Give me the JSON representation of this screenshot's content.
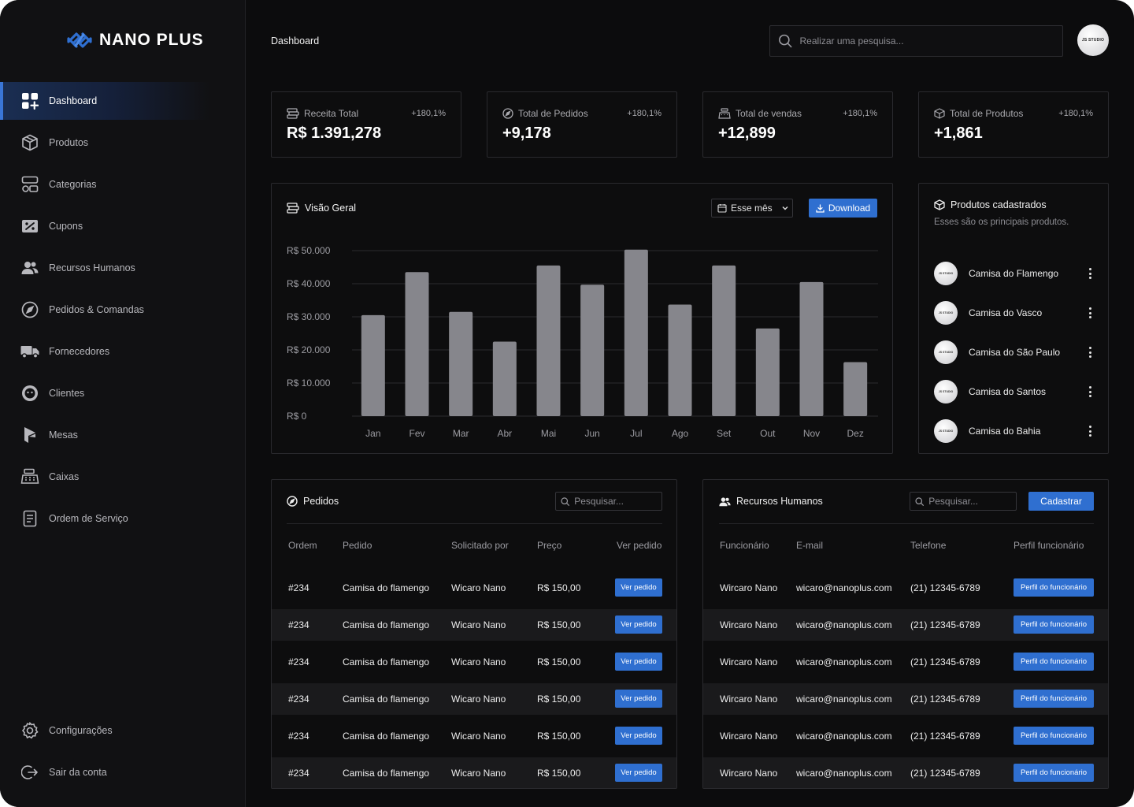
{
  "brand": {
    "name": "NANO PLUS",
    "accent": "#2f6fd0"
  },
  "sidebar": {
    "items": [
      {
        "label": "Dashboard",
        "icon": "dashboard-grid-icon",
        "active": true
      },
      {
        "label": "Produtos",
        "icon": "box-icon"
      },
      {
        "label": "Categorias",
        "icon": "categories-icon"
      },
      {
        "label": "Cupons",
        "icon": "coupon-icon"
      },
      {
        "label": "Recursos Humanos",
        "icon": "users-icon"
      },
      {
        "label": "Pedidos & Comandas",
        "icon": "compass-icon"
      },
      {
        "label": "Fornecedores",
        "icon": "truck-icon"
      },
      {
        "label": "Clientes",
        "icon": "face-icon"
      },
      {
        "label": "Mesas",
        "icon": "table-icon"
      },
      {
        "label": "Caixas",
        "icon": "cash-register-icon"
      },
      {
        "label": "Ordem de Serviço",
        "icon": "document-icon"
      }
    ],
    "bottom": [
      {
        "label": "Configurações",
        "icon": "gear-icon"
      },
      {
        "label": "Sair da conta",
        "icon": "logout-icon"
      }
    ]
  },
  "header": {
    "breadcrumb": "Dashboard",
    "search_placeholder": "Realizar uma pesquisa...",
    "avatar_text": "JS STUDIO"
  },
  "stats": [
    {
      "title": "Receita Total",
      "change": "+180,1%",
      "value": "R$ 1.391,278",
      "icon": "money-icon"
    },
    {
      "title": "Total de Pedidos",
      "change": "+180,1%",
      "value": "+9,178",
      "icon": "compass-icon"
    },
    {
      "title": "Total de vendas",
      "change": "+180,1%",
      "value": "+12,899",
      "icon": "register-icon"
    },
    {
      "title": "Total de Produtos",
      "change": "+180,1%",
      "value": "+1,861",
      "icon": "box-icon"
    }
  ],
  "overview": {
    "title": "Visão Geral",
    "period_label": "Esse mês",
    "download_label": "Download"
  },
  "chart_data": {
    "type": "bar",
    "categories": [
      "Jan",
      "Fev",
      "Mar",
      "Abr",
      "Mai",
      "Jun",
      "Jul",
      "Ago",
      "Set",
      "Out",
      "Nov",
      "Dez"
    ],
    "values": [
      30500,
      43500,
      31500,
      22500,
      45500,
      39700,
      50300,
      33700,
      45500,
      26500,
      40500,
      16300
    ],
    "y_tick_labels": [
      "R$ 0",
      "R$ 10.000",
      "R$ 20.000",
      "R$ 30.000",
      "R$ 40.000",
      "R$ 50.000"
    ],
    "y_ticks": [
      0,
      10000,
      20000,
      30000,
      40000,
      50000
    ],
    "ylim": [
      0,
      50000
    ],
    "grid": true,
    "bar_color": "#86868c"
  },
  "products": {
    "title": "Produtos cadastrados",
    "subtitle": "Esses são os principais produtos.",
    "avatar_text": "JS STUDIO",
    "items": [
      "Camisa do Flamengo",
      "Camisa do Vasco",
      "Camisa do São Paulo",
      "Camisa do Santos",
      "Camisa do Bahia"
    ]
  },
  "orders": {
    "title": "Pedidos",
    "search_placeholder": "Pesquisar...",
    "columns": [
      "Ordem",
      "Pedido",
      "Solicitado por",
      "Preço",
      "Ver pedido"
    ],
    "button_label": "Ver pedido",
    "rows": [
      [
        "#234",
        "Camisa do flamengo",
        "Wicaro Nano",
        "R$ 150,00"
      ],
      [
        "#234",
        "Camisa do flamengo",
        "Wicaro Nano",
        "R$ 150,00"
      ],
      [
        "#234",
        "Camisa do flamengo",
        "Wicaro Nano",
        "R$ 150,00"
      ],
      [
        "#234",
        "Camisa do flamengo",
        "Wicaro Nano",
        "R$ 150,00"
      ],
      [
        "#234",
        "Camisa do flamengo",
        "Wicaro Nano",
        "R$ 150,00"
      ],
      [
        "#234",
        "Camisa do flamengo",
        "Wicaro Nano",
        "R$ 150,00"
      ]
    ]
  },
  "hr": {
    "title": "Recursos Humanos",
    "search_placeholder": "Pesquisar...",
    "add_label": "Cadastrar",
    "columns": [
      "Funcionário",
      "E-mail",
      "Telefone",
      "Perfil funcionário"
    ],
    "button_label": "Perfil do funcionário",
    "rows": [
      [
        "Wircaro Nano",
        "wicaro@nanoplus.com",
        "(21) 12345-6789"
      ],
      [
        "Wircaro Nano",
        "wicaro@nanoplus.com",
        "(21) 12345-6789"
      ],
      [
        "Wircaro Nano",
        "wicaro@nanoplus.com",
        "(21) 12345-6789"
      ],
      [
        "Wircaro Nano",
        "wicaro@nanoplus.com",
        "(21) 12345-6789"
      ],
      [
        "Wircaro Nano",
        "wicaro@nanoplus.com",
        "(21) 12345-6789"
      ],
      [
        "Wircaro Nano",
        "wicaro@nanoplus.com",
        "(21) 12345-6789"
      ]
    ]
  }
}
